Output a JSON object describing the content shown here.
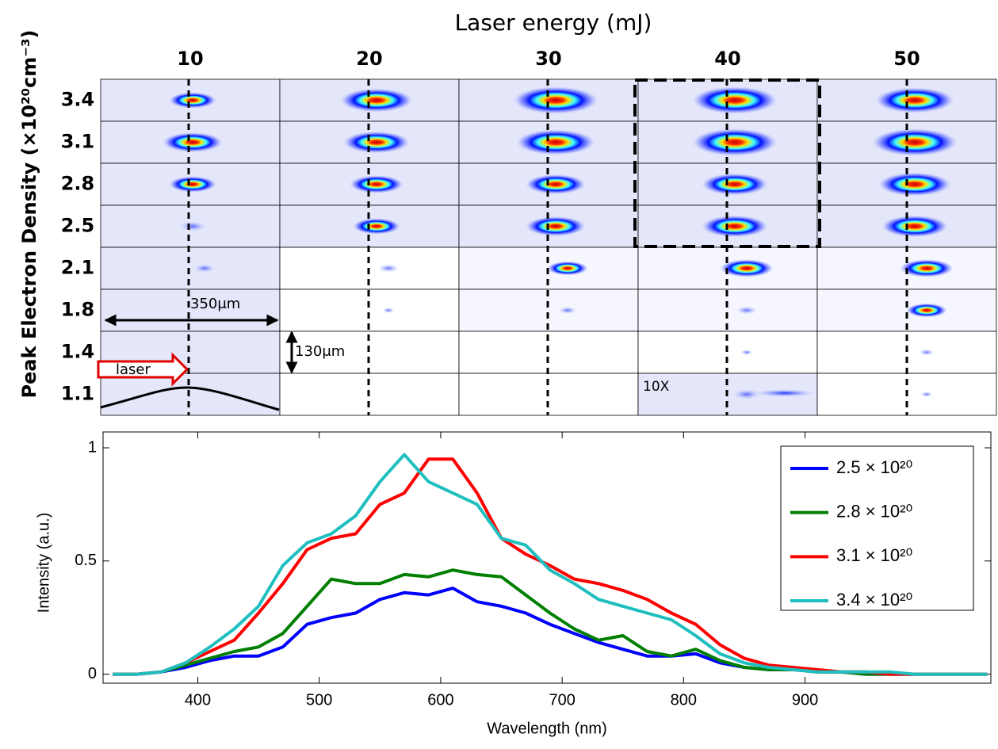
{
  "chart_data": [
    {
      "type": "image-grid",
      "title": "Laser energy (mJ)",
      "ylabel": "Peak Electron Density (×10²⁰cm⁻³)",
      "columns": [
        10,
        20,
        30,
        40,
        50
      ],
      "rows": [
        3.4,
        3.1,
        2.8,
        2.5,
        2.1,
        1.8,
        1.4,
        1.1
      ],
      "annotations": [
        "350μm",
        "130μm",
        "laser",
        "10X"
      ]
    },
    {
      "type": "line",
      "xlabel": "Wavelength (nm)",
      "ylabel": "Intensity (a.u.)",
      "x": [
        330,
        350,
        370,
        390,
        410,
        430,
        450,
        470,
        490,
        510,
        530,
        550,
        570,
        590,
        610,
        630,
        650,
        670,
        690,
        710,
        730,
        750,
        770,
        790,
        810,
        830,
        850,
        870,
        890,
        910,
        930,
        950,
        970,
        990,
        1010,
        1030,
        1050
      ],
      "series": [
        {
          "name": "2.5 × 10²⁰",
          "color": "#0000ff",
          "values": [
            0,
            0,
            0.01,
            0.03,
            0.06,
            0.08,
            0.08,
            0.12,
            0.22,
            0.25,
            0.27,
            0.33,
            0.36,
            0.35,
            0.38,
            0.32,
            0.3,
            0.27,
            0.22,
            0.18,
            0.14,
            0.11,
            0.08,
            0.08,
            0.09,
            0.05,
            0.03,
            0.02,
            0.02,
            0.01,
            0.01,
            0,
            0,
            0,
            0,
            0,
            0
          ]
        },
        {
          "name": "2.8 × 10²⁰",
          "color": "#007f00",
          "values": [
            0,
            0,
            0.01,
            0.04,
            0.07,
            0.1,
            0.12,
            0.18,
            0.3,
            0.42,
            0.4,
            0.4,
            0.44,
            0.43,
            0.46,
            0.44,
            0.43,
            0.35,
            0.27,
            0.2,
            0.15,
            0.17,
            0.1,
            0.08,
            0.11,
            0.06,
            0.03,
            0.02,
            0.02,
            0.01,
            0.01,
            0,
            0,
            0,
            0,
            0,
            0
          ]
        },
        {
          "name": "3.1 × 10²⁰",
          "color": "#ff0000",
          "values": [
            0,
            0,
            0.01,
            0.05,
            0.1,
            0.15,
            0.27,
            0.4,
            0.55,
            0.6,
            0.62,
            0.75,
            0.8,
            0.95,
            0.95,
            0.8,
            0.6,
            0.53,
            0.48,
            0.42,
            0.4,
            0.37,
            0.33,
            0.27,
            0.22,
            0.13,
            0.07,
            0.04,
            0.03,
            0.02,
            0.01,
            0.01,
            0,
            0,
            0,
            0,
            0
          ]
        },
        {
          "name": "3.4 × 10²⁰",
          "color": "#1fbfbf",
          "values": [
            0,
            0,
            0.01,
            0.05,
            0.12,
            0.2,
            0.3,
            0.48,
            0.58,
            0.62,
            0.7,
            0.85,
            0.97,
            0.85,
            0.8,
            0.75,
            0.6,
            0.57,
            0.46,
            0.4,
            0.33,
            0.3,
            0.27,
            0.24,
            0.17,
            0.09,
            0.05,
            0.03,
            0.02,
            0.01,
            0.01,
            0.01,
            0.01,
            0,
            0,
            0,
            0
          ]
        }
      ],
      "xlim": [
        322,
        1053
      ],
      "ylim": [
        -0.04,
        1.07
      ],
      "xticks": [
        400,
        500,
        600,
        700,
        800,
        900
      ],
      "yticks": [
        0,
        0.5,
        1
      ],
      "legend": "upper right"
    }
  ]
}
